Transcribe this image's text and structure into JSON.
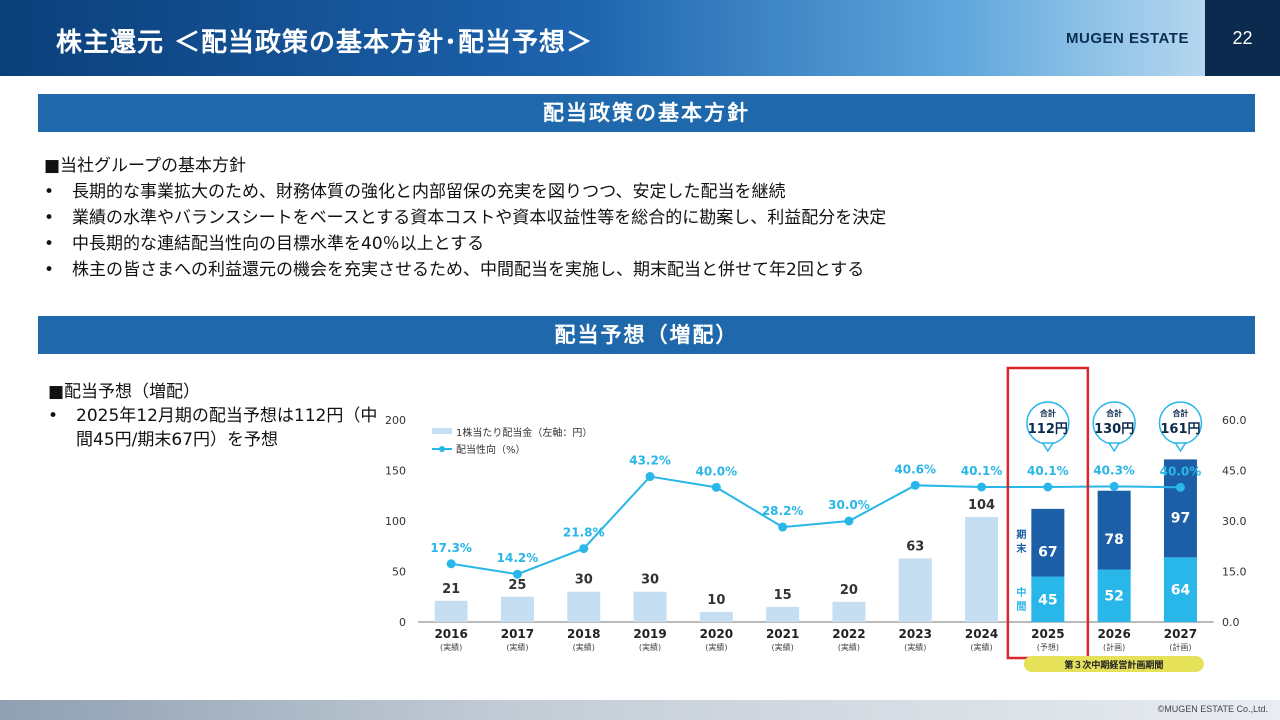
{
  "header": {
    "title": "株主還元 ＜配当政策の基本方針･配当予想＞",
    "brand": "MUGEN ESTATE",
    "page": "22"
  },
  "section1": {
    "title": "配当政策の基本方針",
    "heading": "■当社グループの基本方針",
    "bullets": [
      "長期的な事業拡大のため、財務体質の強化と内部留保の充実を図りつつ、安定した配当を継続",
      "業績の水準やバランスシートをベースとする資本コストや資本収益性等を総合的に勘案し、利益配分を決定",
      "中長期的な連結配当性向の目標水準を40％以上とする",
      "株主の皆さまへの利益還元の機会を充実させるため、中間配当を実施し、期末配当と併せて年2回とする"
    ]
  },
  "section2": {
    "title": "配当予想（増配）",
    "heading": "■配当予想（増配）",
    "bullet": "2025年12月期の配当予想は112円（中間45円/期末67円）を予想"
  },
  "colors": {
    "light_bar": "#c6def2",
    "interim": "#29b6e8",
    "year_end": "#1c5fa6",
    "line": "#29b6e8",
    "highlight": "#d9262c",
    "period_label": "#e5e25a"
  },
  "chart_data": {
    "type": "bar",
    "legend": [
      "1株当たり配当金（左軸：円）",
      "配当性向（%）"
    ],
    "yticks_left": [
      "0",
      "50",
      "100",
      "150",
      "200"
    ],
    "yticks_right": [
      "0.0",
      "15.0",
      "30.0",
      "45.0",
      "60.0"
    ],
    "ylim_left": [
      0,
      200
    ],
    "ylim_right": [
      0,
      60
    ],
    "categories": [
      "2016",
      "2017",
      "2018",
      "2019",
      "2020",
      "2021",
      "2022",
      "2023",
      "2024",
      "2025",
      "2026",
      "2027"
    ],
    "category_notes": [
      "(実績)",
      "(実績)",
      "(実績)",
      "(実績)",
      "(実績)",
      "(実績)",
      "(実績)",
      "(実績)",
      "(実績)",
      "(予想)",
      "(計画)",
      "(計画)"
    ],
    "dividends": [
      21,
      25,
      30,
      30,
      10,
      15,
      20,
      63,
      104,
      null,
      null,
      null
    ],
    "interim": [
      null,
      null,
      null,
      null,
      null,
      null,
      null,
      null,
      null,
      45,
      52,
      64
    ],
    "year_end": [
      null,
      null,
      null,
      null,
      null,
      null,
      null,
      null,
      null,
      67,
      78,
      97
    ],
    "payout_ratio": [
      17.3,
      14.2,
      21.8,
      43.2,
      40.0,
      28.2,
      30.0,
      40.6,
      40.1,
      40.1,
      40.3,
      40.0
    ],
    "payout_labels": [
      "17.3%",
      "14.2%",
      "21.8%",
      "43.2%",
      "40.0%",
      "28.2%",
      "30.0%",
      "40.6%",
      "40.1%",
      "40.1%",
      "40.3%",
      "40.0%"
    ],
    "totals": [
      {
        "label": "合計",
        "value": "112円"
      },
      {
        "label": "合計",
        "value": "130円"
      },
      {
        "label": "合計",
        "value": "161円"
      }
    ],
    "split_labels": {
      "year_end": "期末",
      "interim": "中間"
    },
    "period_label": "第３次中期経営計画期間"
  },
  "footer": {
    "copyright": "©MUGEN ESTATE Co.,Ltd."
  }
}
